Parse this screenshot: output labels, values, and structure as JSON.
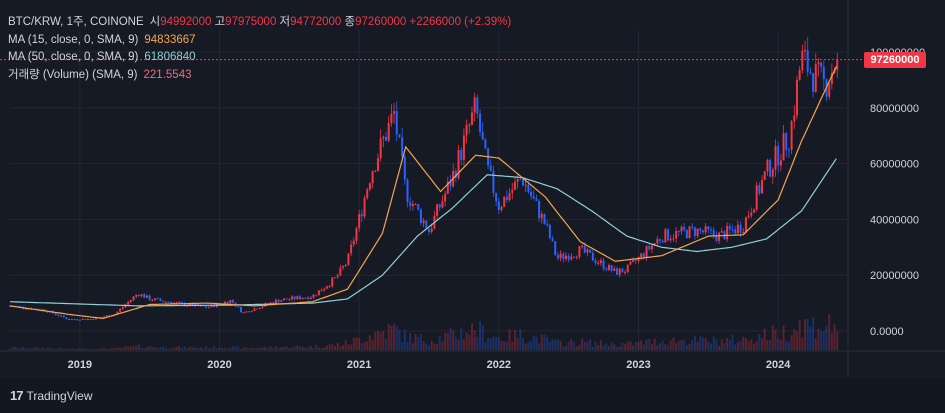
{
  "legend": {
    "symbol": "BTC/KRW, 1주, COINONE",
    "open_label": "시",
    "open": "94992000",
    "high_label": "고",
    "high": "97975000",
    "low_label": "저",
    "low": "94772000",
    "close_label": "종",
    "close": "97260000",
    "change": "+2266000 (+2.39%)",
    "ma15_label": "MA (15, close, 0, SMA, 9)",
    "ma15_value": "94833667",
    "ma50_label": "MA (50, close, 0, SMA, 9)",
    "ma50_value": "61806840",
    "vol_label": "거래량 (Volume) (SMA, 9)",
    "vol_value": "221.5543"
  },
  "price_tag": "97260000",
  "brand": {
    "name": "TradingView",
    "logo_glyph": "17"
  },
  "colors": {
    "bg": "#161a25",
    "up": "#f23645",
    "down": "#2962ff",
    "ma15": "#f5a64a",
    "ma50": "#8fd1d6",
    "text": "#d1d4dc"
  },
  "chart_data": {
    "type": "candlestick",
    "xlabel": "",
    "ylabel": "",
    "x_ticks": [
      "2019",
      "2020",
      "2021",
      "2022",
      "2023",
      "2024"
    ],
    "y_ticks": [
      "100000000",
      "80000000",
      "60000000",
      "40000000",
      "20000000",
      "0.0000"
    ],
    "ylim": [
      0,
      102000000
    ],
    "xlim": [
      "2018-07",
      "2024-07"
    ],
    "grid": true,
    "last_price": 97260000,
    "series": [
      {
        "name": "MA (15, close, 0, SMA, 9)",
        "color": "#f5a64a"
      },
      {
        "name": "MA (50, close, 0, SMA, 9)",
        "color": "#8fd1d6"
      }
    ],
    "price_keypoints": [
      [
        "2018-07",
        9000000
      ],
      [
        "2018-10",
        7500000
      ],
      [
        "2018-12",
        4200000
      ],
      [
        "2019-02",
        4300000
      ],
      [
        "2019-04",
        6000000
      ],
      [
        "2019-06",
        13500000
      ],
      [
        "2019-07",
        11500000
      ],
      [
        "2019-10",
        9500000
      ],
      [
        "2019-12",
        8500000
      ],
      [
        "2020-02",
        11000000
      ],
      [
        "2020-03",
        6500000
      ],
      [
        "2020-06",
        11000000
      ],
      [
        "2020-09",
        12500000
      ],
      [
        "2020-11",
        19000000
      ],
      [
        "2020-12",
        25000000
      ],
      [
        "2021-01",
        40000000
      ],
      [
        "2021-02",
        57000000
      ],
      [
        "2021-04",
        78000000
      ],
      [
        "2021-05",
        50000000
      ],
      [
        "2021-07",
        36000000
      ],
      [
        "2021-09",
        55000000
      ],
      [
        "2021-11",
        80000000
      ],
      [
        "2021-12",
        58000000
      ],
      [
        "2022-01",
        45000000
      ],
      [
        "2022-03",
        55000000
      ],
      [
        "2022-05",
        38000000
      ],
      [
        "2022-06",
        26000000
      ],
      [
        "2022-08",
        29000000
      ],
      [
        "2022-11",
        21000000
      ],
      [
        "2022-12",
        22000000
      ],
      [
        "2023-03",
        34000000
      ],
      [
        "2023-06",
        36000000
      ],
      [
        "2023-08",
        34000000
      ],
      [
        "2023-10",
        38000000
      ],
      [
        "2023-12",
        57000000
      ],
      [
        "2024-02",
        70000000
      ],
      [
        "2024-03",
        98000000
      ],
      [
        "2024-04",
        92000000
      ],
      [
        "2024-05",
        88000000
      ],
      [
        "2024-06",
        97260000
      ]
    ],
    "ma15_keypoints": [
      [
        "2018-07",
        9000000
      ],
      [
        "2018-12",
        6000000
      ],
      [
        "2019-03",
        4500000
      ],
      [
        "2019-07",
        9500000
      ],
      [
        "2019-12",
        10000000
      ],
      [
        "2020-04",
        9000000
      ],
      [
        "2020-09",
        10500000
      ],
      [
        "2020-12",
        15000000
      ],
      [
        "2021-03",
        35000000
      ],
      [
        "2021-05",
        66000000
      ],
      [
        "2021-08",
        50000000
      ],
      [
        "2021-11",
        63000000
      ],
      [
        "2022-01",
        62000000
      ],
      [
        "2022-05",
        48000000
      ],
      [
        "2022-08",
        32000000
      ],
      [
        "2022-11",
        25000000
      ],
      [
        "2023-03",
        27000000
      ],
      [
        "2023-07",
        34000000
      ],
      [
        "2023-10",
        34500000
      ],
      [
        "2024-01",
        47000000
      ],
      [
        "2024-03",
        68000000
      ],
      [
        "2024-05",
        86000000
      ],
      [
        "2024-06",
        94833667
      ]
    ],
    "ma50_keypoints": [
      [
        "2018-07",
        10500000
      ],
      [
        "2019-06",
        9000000
      ],
      [
        "2020-02",
        9300000
      ],
      [
        "2020-09",
        10000000
      ],
      [
        "2020-12",
        11500000
      ],
      [
        "2021-03",
        20000000
      ],
      [
        "2021-06",
        34000000
      ],
      [
        "2021-09",
        44000000
      ],
      [
        "2021-12",
        56000000
      ],
      [
        "2022-03",
        55000000
      ],
      [
        "2022-06",
        51000000
      ],
      [
        "2022-09",
        43000000
      ],
      [
        "2022-12",
        34000000
      ],
      [
        "2023-03",
        30000000
      ],
      [
        "2023-06",
        28500000
      ],
      [
        "2023-09",
        30000000
      ],
      [
        "2023-12",
        33000000
      ],
      [
        "2024-03",
        43000000
      ],
      [
        "2024-06",
        61806840
      ]
    ]
  }
}
